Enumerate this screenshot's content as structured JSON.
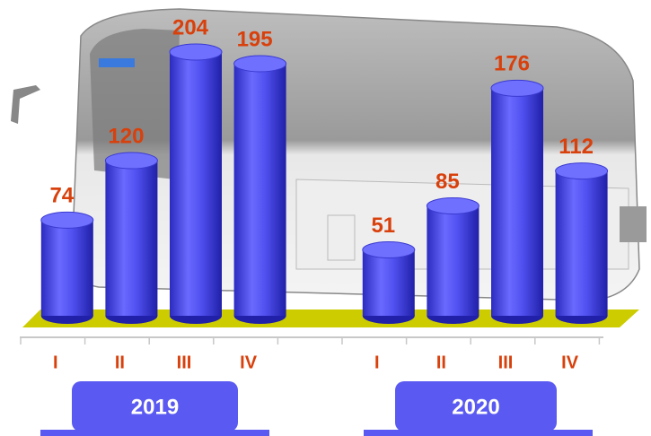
{
  "chart_data": {
    "type": "bar",
    "categories": [
      "I",
      "II",
      "III",
      "IV",
      null,
      "I",
      "II",
      "III",
      "IV"
    ],
    "values": [
      74,
      120,
      204,
      195,
      null,
      51,
      85,
      176,
      112
    ],
    "color": "#5050f0",
    "label_color": "#d8400c",
    "floor_color": "#cccc00",
    "groups": [
      "2019",
      "2020"
    ],
    "group_color": "#5a5af2"
  }
}
